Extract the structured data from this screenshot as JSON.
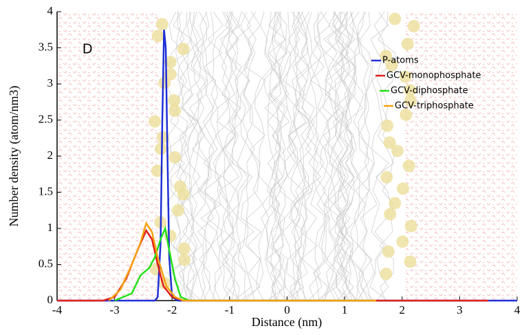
{
  "chart_data": {
    "type": "line",
    "annotation": "D",
    "xlabel": "Distance (nm)",
    "ylabel": "Number density (atom/nm3)",
    "xlim": [
      -4,
      4
    ],
    "xticks": [
      -4,
      -3,
      -2,
      -1,
      0,
      1,
      2,
      3,
      4
    ],
    "ylim": [
      0,
      4
    ],
    "yticks": [
      0,
      0.5,
      1,
      1.5,
      2,
      2.5,
      3,
      3.5,
      4
    ],
    "legend": "upper right",
    "series": [
      {
        "name": "P-atoms",
        "color": "#1f2fd6",
        "x": [
          -4,
          -2.3,
          -2.25,
          -2.2,
          -2.17,
          -2.14,
          -2.11,
          -2.08,
          -2.05,
          -2.0,
          -1.9,
          4
        ],
        "values": [
          0,
          0,
          0.05,
          0.8,
          2.5,
          3.75,
          3.5,
          2.0,
          0.6,
          0.05,
          0,
          0
        ]
      },
      {
        "name": "GCV-monophosphate",
        "color": "#e0201a",
        "x": [
          -4,
          -3.2,
          -3.0,
          -2.8,
          -2.6,
          -2.45,
          -2.35,
          -2.25,
          -2.15,
          -2.0,
          -1.8,
          3.5
        ],
        "values": [
          0,
          0,
          0.05,
          0.3,
          0.7,
          0.97,
          0.85,
          0.5,
          0.2,
          0.05,
          0,
          0
        ]
      },
      {
        "name": "GCV-diphosphate",
        "color": "#22e01a",
        "x": [
          -3.0,
          -2.7,
          -2.55,
          -2.4,
          -2.3,
          -2.2,
          -2.12,
          -2.05,
          -1.95,
          -1.85,
          -1.7,
          1.5
        ],
        "values": [
          0,
          0.1,
          0.35,
          0.45,
          0.6,
          0.85,
          1.0,
          0.7,
          0.3,
          0.05,
          0,
          0
        ]
      },
      {
        "name": "GCV-triphosphate",
        "color": "#f5a00f",
        "x": [
          -3.1,
          -2.9,
          -2.7,
          -2.55,
          -2.45,
          -2.35,
          -2.25,
          -2.1,
          -1.95,
          -1.8,
          1.55
        ],
        "values": [
          0,
          0.15,
          0.5,
          0.8,
          1.07,
          0.95,
          0.6,
          0.2,
          0.05,
          0,
          0
        ]
      }
    ]
  }
}
